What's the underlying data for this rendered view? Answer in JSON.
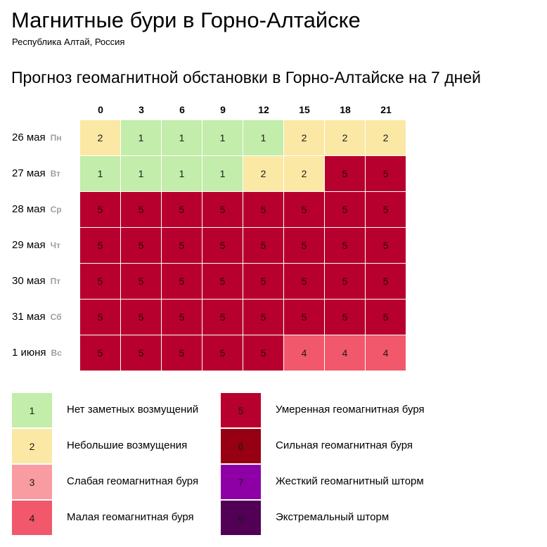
{
  "header": {
    "title": "Магнитные бури в Горно-Алтайске",
    "subtitle": "Республика Алтай, Россия"
  },
  "forecast": {
    "title": "Прогноз геомагнитной обстановки в Горно-Алтайске на 7 дней",
    "hours": [
      "0",
      "3",
      "6",
      "9",
      "12",
      "15",
      "18",
      "21"
    ],
    "days": [
      {
        "date": "26 мая",
        "dow": "Пн",
        "values": [
          2,
          1,
          1,
          1,
          1,
          2,
          2,
          2
        ]
      },
      {
        "date": "27 мая",
        "dow": "Вт",
        "values": [
          1,
          1,
          1,
          1,
          2,
          2,
          5,
          5
        ]
      },
      {
        "date": "28 мая",
        "dow": "Ср",
        "values": [
          5,
          5,
          5,
          5,
          5,
          5,
          5,
          5
        ]
      },
      {
        "date": "29 мая",
        "dow": "Чт",
        "values": [
          5,
          5,
          5,
          5,
          5,
          5,
          5,
          5
        ]
      },
      {
        "date": "30 мая",
        "dow": "Пт",
        "values": [
          5,
          5,
          5,
          5,
          5,
          5,
          5,
          5
        ]
      },
      {
        "date": "31 мая",
        "dow": "Сб",
        "values": [
          5,
          5,
          5,
          5,
          5,
          5,
          5,
          5
        ]
      },
      {
        "date": "1 июня",
        "dow": "Вс",
        "values": [
          5,
          5,
          5,
          5,
          5,
          4,
          4,
          4
        ]
      }
    ]
  },
  "levels": [
    {
      "level": 1,
      "label": "Нет заметных возмущений",
      "color": "#c3edaa"
    },
    {
      "level": 2,
      "label": "Небольшие возмущения",
      "color": "#fbe8a4"
    },
    {
      "level": 3,
      "label": "Слабая геомагнитная буря",
      "color": "#f99ca1"
    },
    {
      "level": 4,
      "label": "Малая геомагнитная буря",
      "color": "#f1586b"
    },
    {
      "level": 5,
      "label": "Умеренная геомагнитная буря",
      "color": "#b7002e"
    },
    {
      "level": 6,
      "label": "Сильная геомагнитная буря",
      "color": "#970012"
    },
    {
      "level": 7,
      "label": "Жесткий геомагнитный шторм",
      "color": "#8e00a5"
    },
    {
      "level": 8,
      "label": "Экстремальный шторм",
      "color": "#510056"
    }
  ]
}
